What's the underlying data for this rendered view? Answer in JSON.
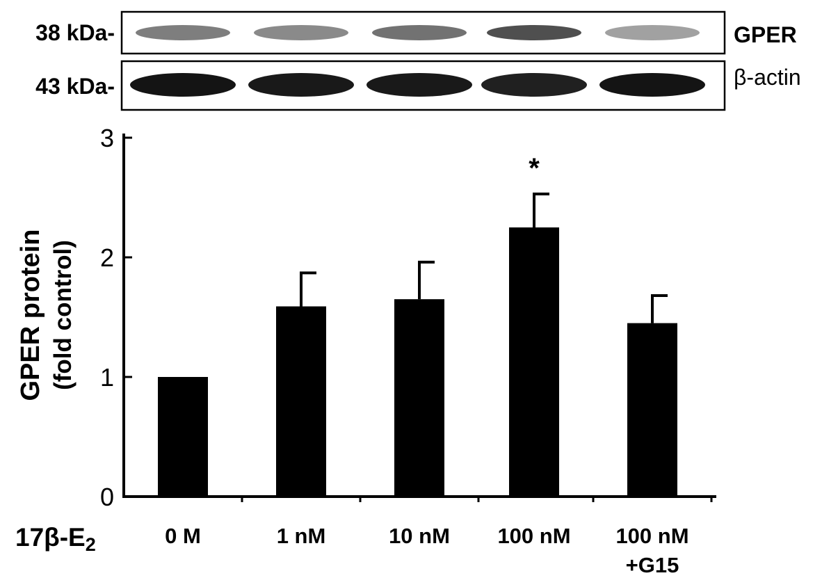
{
  "blot": {
    "rows": [
      {
        "marker": "38 kDa-",
        "protein": "GPER",
        "intensity": [
          0.55,
          0.5,
          0.6,
          0.75,
          0.4
        ]
      },
      {
        "marker": "43 kDa-",
        "protein": "β-actin",
        "intensity": [
          1.0,
          0.98,
          0.98,
          0.95,
          1.0
        ]
      }
    ]
  },
  "chart_data": {
    "type": "bar",
    "categories": [
      "0 M",
      "1 nM",
      "10 nM",
      "100 nM",
      "100 nM +G15"
    ],
    "category_lines": [
      [
        "0 M"
      ],
      [
        "1 nM"
      ],
      [
        "10 nM"
      ],
      [
        "100 nM"
      ],
      [
        "100 nM",
        "+G15"
      ]
    ],
    "values": [
      1.0,
      1.59,
      1.65,
      2.25,
      1.45
    ],
    "errors": [
      0.0,
      0.28,
      0.31,
      0.28,
      0.23
    ],
    "significance": [
      "",
      "",
      "",
      "*",
      ""
    ],
    "ylabel": "GPER protein",
    "ylabel_sub": "(fold control)",
    "xlabel": "17β-E",
    "xlabel_sub": "2",
    "ylim": [
      0,
      3
    ],
    "yticks": [
      "0",
      "1",
      "2",
      "3"
    ],
    "bar_color": "#000000",
    "grid": false,
    "legend": "none"
  }
}
